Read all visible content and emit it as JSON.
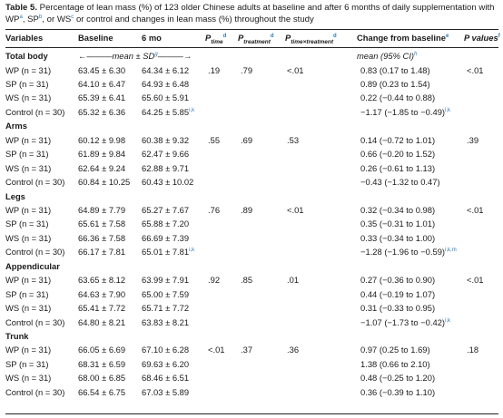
{
  "caption": {
    "label": "Table 5.",
    "text_1": " Percentage of lean mass (%) of 123 older Chinese adults at baseline and after 6 months of daily supplementation with WP",
    "sup_a": "a",
    "text_2": ", SP",
    "sup_b": "b",
    "text_3": ", or WS",
    "sup_c": "c",
    "text_4": " or control and changes in lean mass (%) throughout the study"
  },
  "headers": {
    "variables": "Variables",
    "baseline": "Baseline",
    "six_mo": "6 mo",
    "p_time": "P",
    "p_time_sub": "time",
    "p_time_sup": "d",
    "p_treatment": "P",
    "p_treatment_sub": "treatment",
    "p_treatment_sup": "d",
    "p_interaction": "P",
    "p_interaction_sub": "time×treatment",
    "p_interaction_sup": "d",
    "change": "Change from baseline",
    "change_sup": "e",
    "p_values": "P values",
    "p_values_sup": "f"
  },
  "units_row": {
    "mean_sd": "←———mean ± SD",
    "mean_sd_sup": "g",
    "mean_sd_end": "———→",
    "mean_ci": "mean (95% CI)",
    "mean_ci_sup": "h"
  },
  "colors": {
    "superscript": "#2a78b8",
    "rule": "#222222",
    "text": "#1a1a1a"
  },
  "sections": [
    {
      "name": "Total body",
      "p_time": ".19",
      "p_treatment": ".79",
      "p_interaction": "<.01",
      "p_values": "<.01",
      "rows": [
        {
          "variable": "WP (n = 31)",
          "baseline": "63.45 ± 6.30",
          "six_mo": "64.34 ± 6.12",
          "six_mo_sup": "",
          "change": "0.83 (0.17 to 1.48)",
          "change_sup": ""
        },
        {
          "variable": "SP (n = 31)",
          "baseline": "64.10 ± 6.47",
          "six_mo": "64.93 ± 6.48",
          "six_mo_sup": "",
          "change": "0.89 (0.23 to 1.54)",
          "change_sup": ""
        },
        {
          "variable": "WS (n = 31)",
          "baseline": "65.39 ± 6.41",
          "six_mo": "65.60 ± 5.91",
          "six_mo_sup": "",
          "change": "0.22 (−0.44 to 0.88)",
          "change_sup": ""
        },
        {
          "variable": "Control (n = 30)",
          "baseline": "65.32 ± 6.36",
          "six_mo": "64.25 ± 5.85",
          "six_mo_sup": "i,k",
          "change": "−1.17 (−1.85 to −0.49)",
          "change_sup": "i,k"
        }
      ]
    },
    {
      "name": "Arms",
      "p_time": ".55",
      "p_treatment": ".69",
      "p_interaction": ".53",
      "p_values": ".39",
      "rows": [
        {
          "variable": "WP (n = 31)",
          "baseline": "60.12 ± 9.98",
          "six_mo": "60.38 ± 9.32",
          "six_mo_sup": "",
          "change": "0.14 (−0.72 to 1.01)",
          "change_sup": ""
        },
        {
          "variable": "SP (n = 31)",
          "baseline": "61.89 ± 9.84",
          "six_mo": "62.47 ± 9.66",
          "six_mo_sup": "",
          "change": "0.66 (−0.20 to 1.52)",
          "change_sup": ""
        },
        {
          "variable": "WS (n = 31)",
          "baseline": "62.64 ± 9.24",
          "six_mo": "62.88 ± 9.71",
          "six_mo_sup": "",
          "change": "0.26 (−0.61 to 1.13)",
          "change_sup": ""
        },
        {
          "variable": "Control (n = 30)",
          "baseline": "60.84 ± 10.25",
          "six_mo": "60.43 ± 10.02",
          "six_mo_sup": "",
          "change": "−0.43 (−1.32 to 0.47)",
          "change_sup": ""
        }
      ]
    },
    {
      "name": "Legs",
      "p_time": ".76",
      "p_treatment": ".89",
      "p_interaction": "<.01",
      "p_values": "<.01",
      "rows": [
        {
          "variable": "WP (n = 31)",
          "baseline": "64.89 ± 7.79",
          "six_mo": "65.27 ± 7.67",
          "six_mo_sup": "",
          "change": "0.32 (−0.34 to 0.98)",
          "change_sup": ""
        },
        {
          "variable": "SP (n = 31)",
          "baseline": "65.61 ± 7.58",
          "six_mo": "65.88 ± 7.20",
          "six_mo_sup": "",
          "change": "0.35 (−0.31 to 1.01)",
          "change_sup": ""
        },
        {
          "variable": "WS (n = 31)",
          "baseline": "66.36 ± 7.58",
          "six_mo": "66.69 ± 7.39",
          "six_mo_sup": "",
          "change": "0.33 (−0.34 to 1.00)",
          "change_sup": ""
        },
        {
          "variable": "Control (n = 30)",
          "baseline": "66.17 ± 7.81",
          "six_mo": "65.01 ± 7.81",
          "six_mo_sup": "i,k",
          "change": "−1.28 (−1.96 to −0.59)",
          "change_sup": "i,k,m"
        }
      ]
    },
    {
      "name": "Appendicular",
      "p_time": ".92",
      "p_treatment": ".85",
      "p_interaction": ".01",
      "p_values": "<.01",
      "rows": [
        {
          "variable": "WP (n = 31)",
          "baseline": "63.65 ± 8.12",
          "six_mo": "63.99 ± 7.91",
          "six_mo_sup": "",
          "change": "0.27 (−0.36 to 0.90)",
          "change_sup": ""
        },
        {
          "variable": "SP (n = 31)",
          "baseline": "64.63 ± 7.90",
          "six_mo": "65.00 ± 7.59",
          "six_mo_sup": "",
          "change": "0.44 (−0.19 to 1.07)",
          "change_sup": ""
        },
        {
          "variable": "WS (n = 31)",
          "baseline": "65.41 ± 7.72",
          "six_mo": "65.71 ± 7.72",
          "six_mo_sup": "",
          "change": "0.31 (−0.33 to 0.95)",
          "change_sup": ""
        },
        {
          "variable": "Control (n = 30)",
          "baseline": "64.80 ± 8.21",
          "six_mo": "63.83 ± 8.21",
          "six_mo_sup": "",
          "change": "−1.07 (−1.73 to −0.42)",
          "change_sup": "i,k"
        }
      ]
    },
    {
      "name": "Trunk",
      "p_time": "<.01",
      "p_treatment": ".37",
      "p_interaction": ".36",
      "p_values": ".18",
      "rows": [
        {
          "variable": "WP (n = 31)",
          "baseline": "66.05 ± 6.69",
          "six_mo": "67.10 ± 6.28",
          "six_mo_sup": "",
          "change": "0.97 (0.25 to 1.69)",
          "change_sup": ""
        },
        {
          "variable": "SP (n = 31)",
          "baseline": "68.31 ± 6.59",
          "six_mo": "69.63 ± 6.20",
          "six_mo_sup": "",
          "change": "1.38 (0.66 to 2.10)",
          "change_sup": ""
        },
        {
          "variable": "WS (n = 31)",
          "baseline": "68.00 ± 6.85",
          "six_mo": "68.46 ± 6.51",
          "six_mo_sup": "",
          "change": "0.48 (−0.25 to 1.20)",
          "change_sup": ""
        },
        {
          "variable": "Control (n = 30)",
          "baseline": "66.54 ± 6.75",
          "six_mo": "67.03 ± 5.89",
          "six_mo_sup": "",
          "change": "0.36 (−0.39 to 1.10)",
          "change_sup": ""
        }
      ]
    }
  ]
}
